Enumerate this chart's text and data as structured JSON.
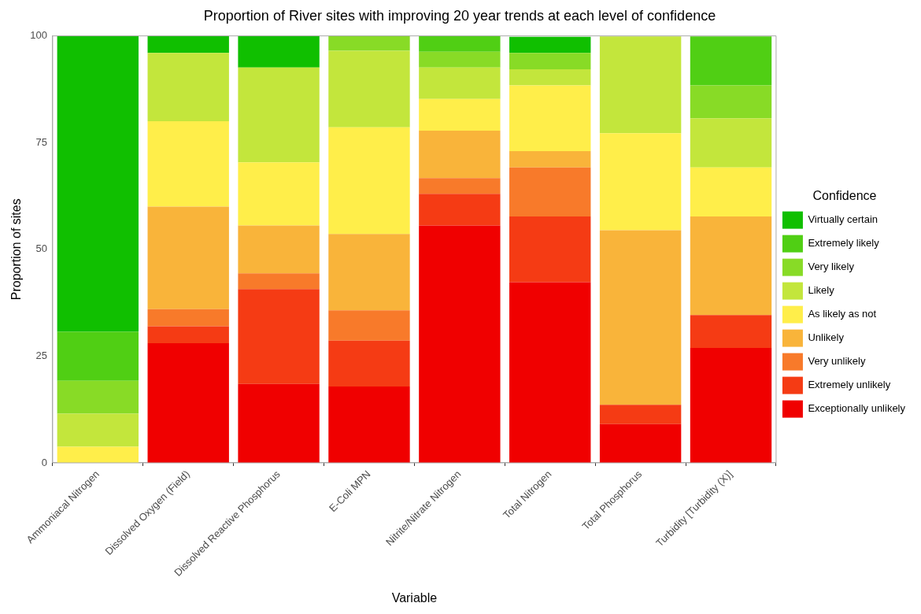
{
  "chart_data": {
    "type": "bar",
    "stacked": true,
    "title": "Proportion of River sites with improving 20 year trends at each level of confidence",
    "xlabel": "Variable",
    "ylabel": "Proportion of sites",
    "legend_title": "Confidence",
    "legend": "right",
    "grid": false,
    "categories": [
      "Ammoniacal Nitrogen",
      "Dissolved Oxygen (Field)",
      "Dissolved Reactive Phosphorus",
      "E-Coli MPN",
      "Nitrite/Nitrate Nitrogen",
      "Total Nitrogen",
      "Total Phosphorus",
      "Turbidity [Turbidity (X)]"
    ],
    "ylim": [
      0,
      100
    ],
    "yticks": [
      0,
      25,
      50,
      75,
      100
    ],
    "series": [
      {
        "name": "Exceptionally unlikely",
        "color": "#f00000",
        "values": [
          0,
          28,
          18.5,
          17.9,
          55.6,
          42.3,
          9.1,
          26.9
        ]
      },
      {
        "name": "Extremely unlikely",
        "color": "#f53b14",
        "values": [
          0,
          4,
          22.2,
          10.7,
          7.4,
          15.4,
          4.5,
          7.7
        ]
      },
      {
        "name": "Very unlikely",
        "color": "#f87a2a",
        "values": [
          0,
          4,
          3.7,
          7.1,
          3.7,
          11.5,
          0,
          0
        ]
      },
      {
        "name": "Unlikely",
        "color": "#f9b43a",
        "values": [
          0,
          24,
          11.2,
          17.9,
          11.1,
          3.8,
          40.9,
          23.1
        ]
      },
      {
        "name": "As likely as not",
        "color": "#ffee4a",
        "values": [
          3.8,
          20,
          14.8,
          25,
          7.4,
          15.4,
          22.7,
          11.5
        ]
      },
      {
        "name": "Likely",
        "color": "#c3e63c",
        "values": [
          7.7,
          16,
          22.2,
          17.9,
          7.4,
          3.8,
          22.7,
          11.5
        ]
      },
      {
        "name": "Very likely",
        "color": "#88db26",
        "values": [
          7.7,
          0,
          0,
          3.6,
          3.7,
          3.8,
          0,
          7.7
        ]
      },
      {
        "name": "Extremely likely",
        "color": "#50cf14",
        "values": [
          11.5,
          0,
          0,
          0,
          3.7,
          0,
          0,
          11.5
        ]
      },
      {
        "name": "Virtually certain",
        "color": "#10bf00",
        "values": [
          69.3,
          4,
          7.4,
          0,
          0,
          3.8,
          0,
          0
        ]
      }
    ]
  }
}
